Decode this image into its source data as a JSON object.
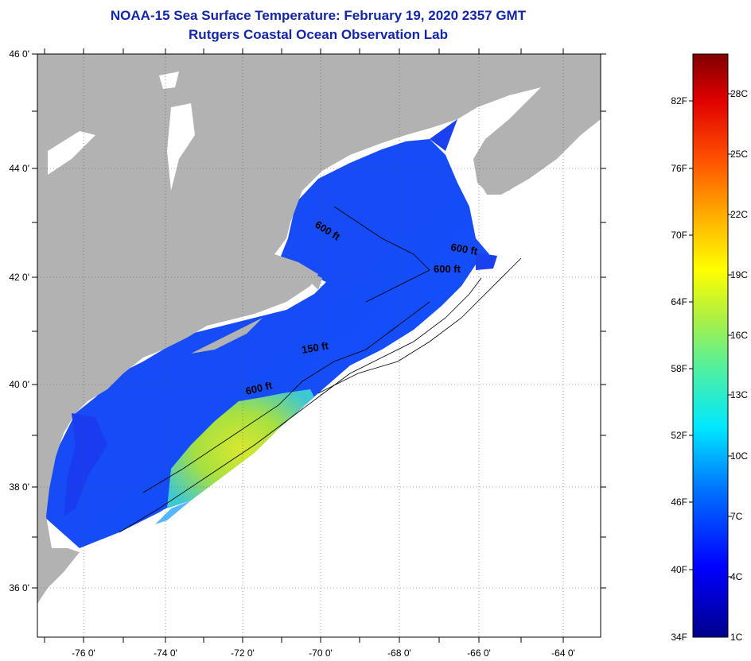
{
  "title": "NOAA-15 Sea Surface Temperature:  February 19, 2020 2357 GMT",
  "subtitle": "Rutgers Coastal Ocean Observation Lab",
  "axes": {
    "lat_labels": [
      "46 0'",
      "44 0'",
      "42 0'",
      "40 0'",
      "38 0'",
      "36 0'"
    ],
    "lon_labels": [
      "-76 0'",
      "-74 0'",
      "-72 0'",
      "-70 0'",
      "-68 0'",
      "-66 0'",
      "-64 0'"
    ]
  },
  "isobath_labels": [
    "600 ft",
    "600 ft",
    "600 ft",
    "150 ft",
    "600 ft"
  ],
  "colorbar": {
    "fahrenheit": [
      "82F",
      "76F",
      "70F",
      "64F",
      "58F",
      "52F",
      "46F",
      "40F",
      "34F"
    ],
    "celsius": [
      "28C",
      "25C",
      "22C",
      "19C",
      "16C",
      "13C",
      "10C",
      "7C",
      "4C",
      "1C"
    ]
  },
  "colors": {
    "land": "#b2b2b2",
    "title": "#1426a8",
    "ocean_cold": "#1a3cf0",
    "ocean_warm": "#b4e02e"
  }
}
